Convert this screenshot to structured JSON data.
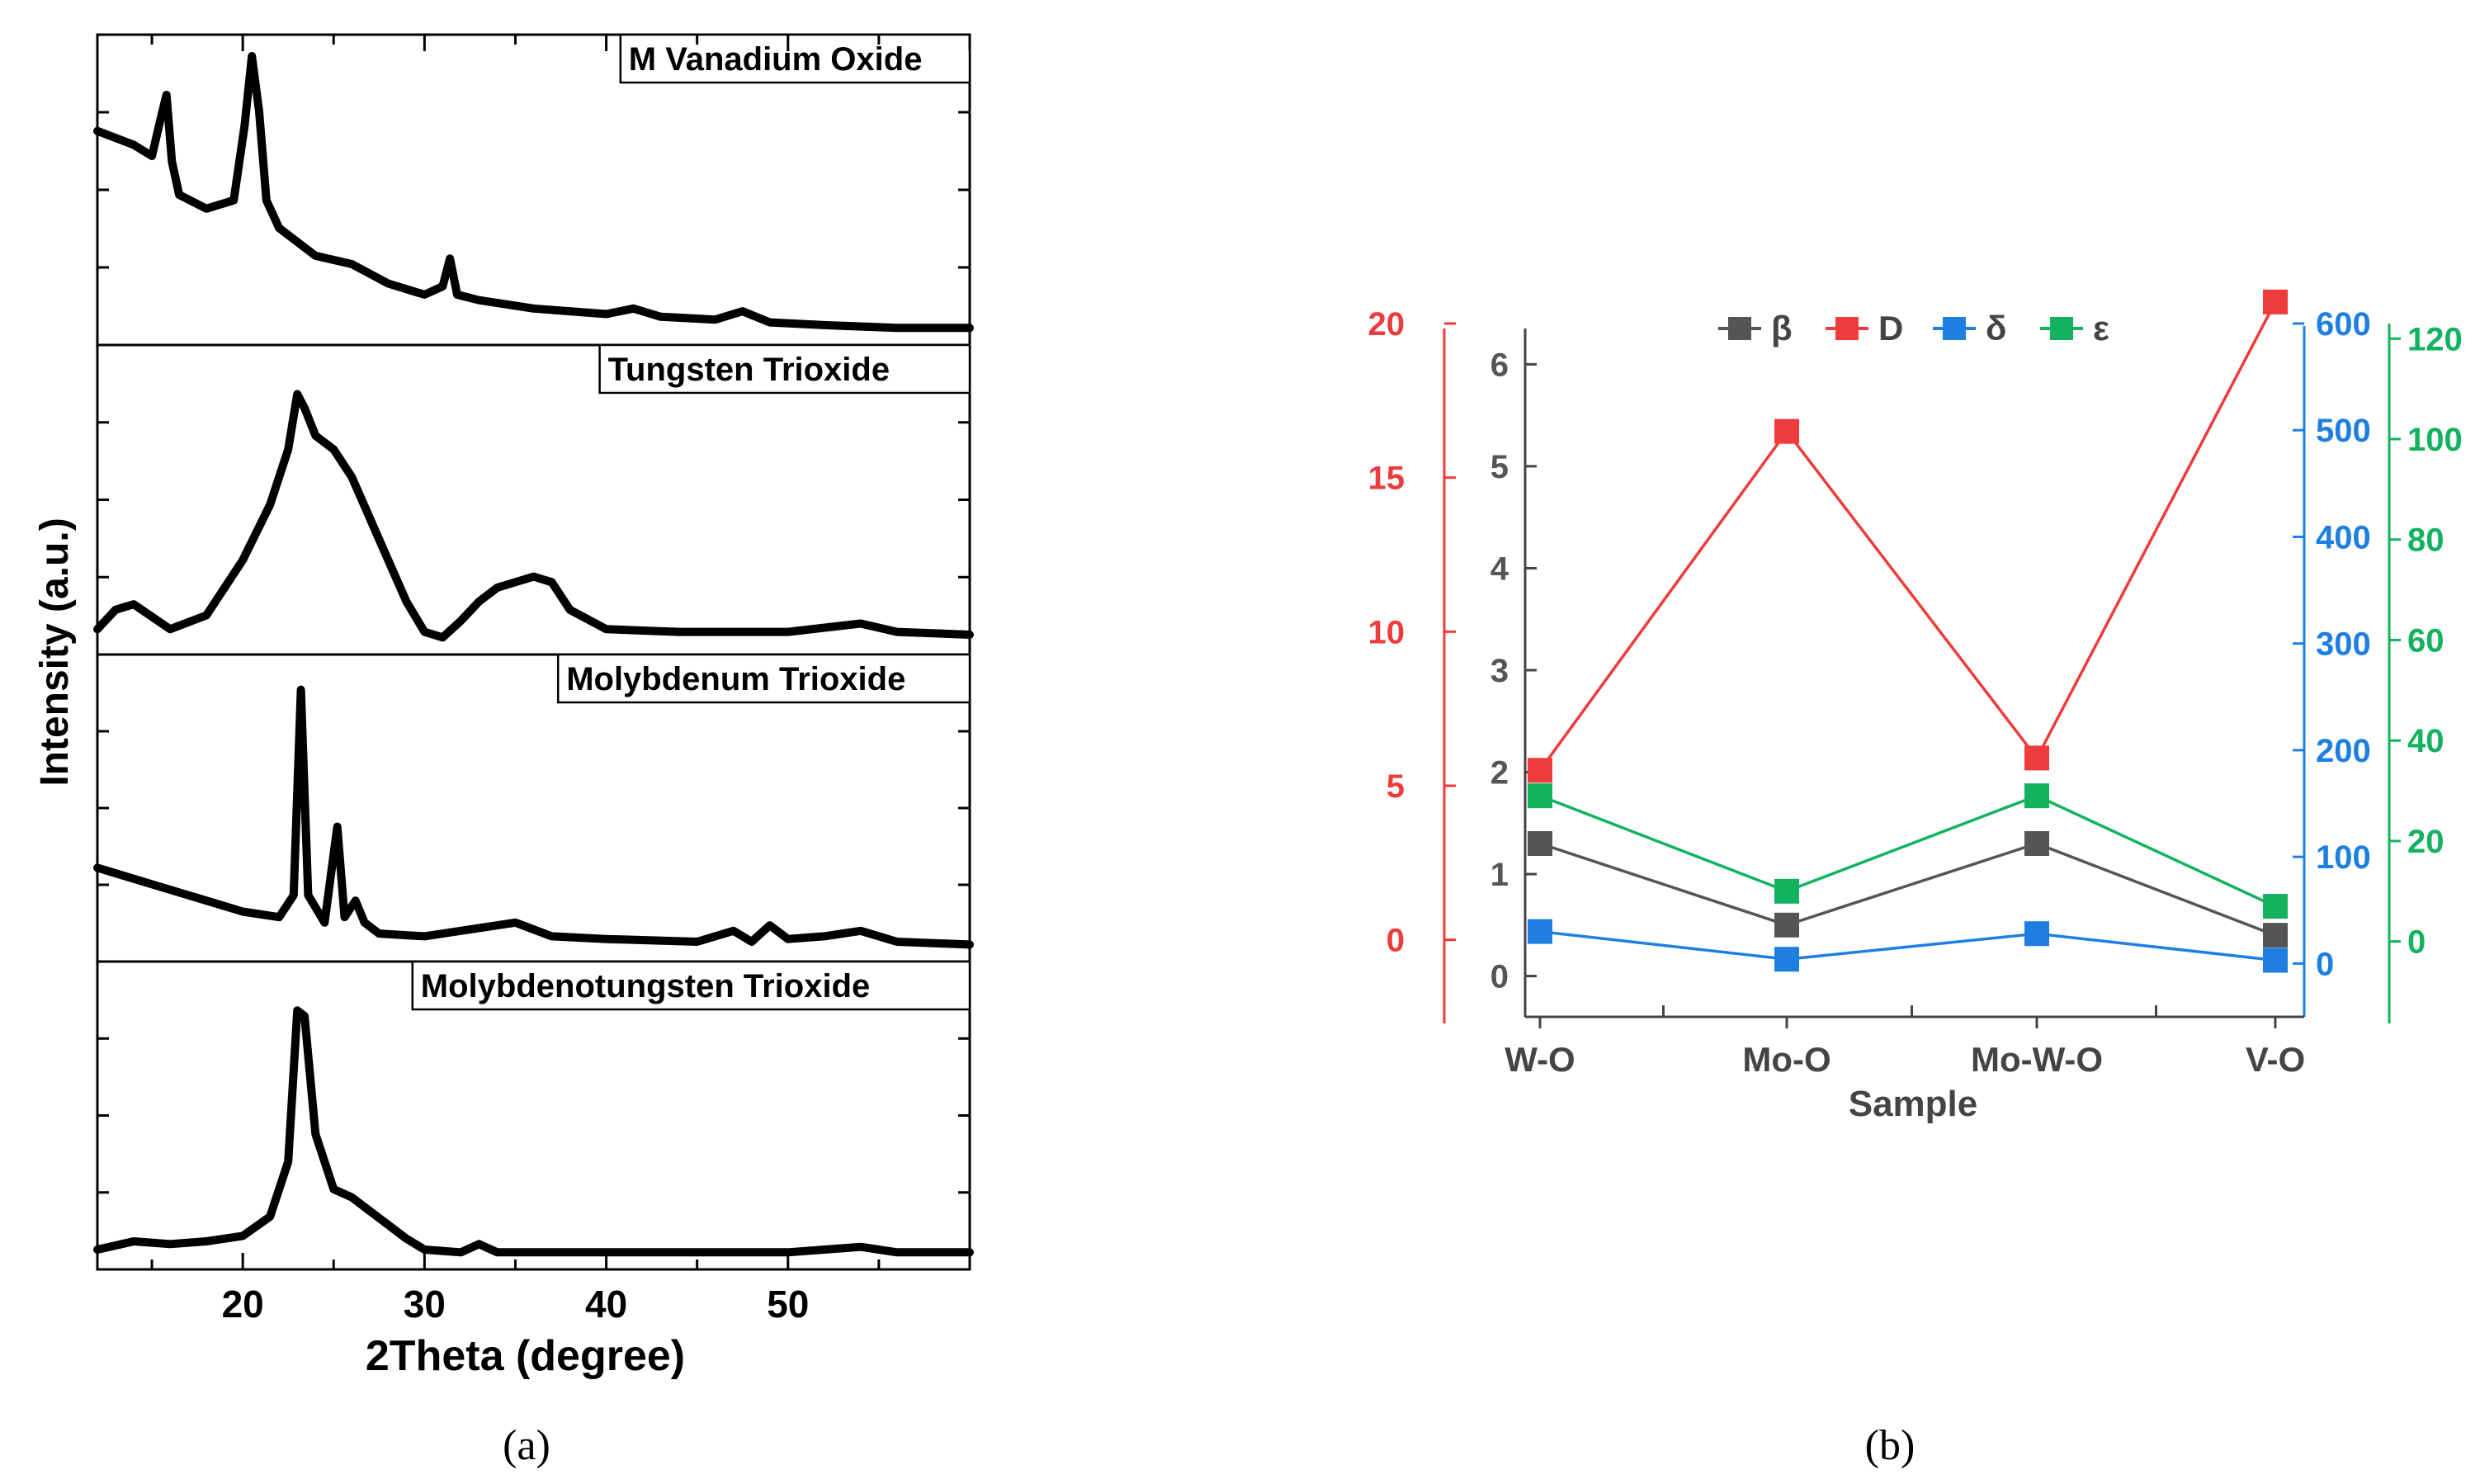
{
  "chart_data": [
    {
      "type": "line",
      "panel": "(a)",
      "xlabel": "2Theta (degree)",
      "ylabel": "Intensity (a.u.)",
      "xlim": [
        12,
        60
      ],
      "xticks": [
        20,
        30,
        40,
        50
      ],
      "series": [
        {
          "name": "M Vanadium Oxide",
          "x": [
            12,
            14,
            15,
            15.5,
            15.8,
            16.1,
            16.5,
            18,
            19.5,
            20.1,
            20.5,
            20.9,
            21.3,
            22,
            24,
            26,
            28,
            30,
            31,
            31.4,
            31.8,
            33,
            36,
            40,
            41.5,
            43,
            46,
            47.5,
            49,
            52,
            56,
            60
          ],
          "y": [
            0.73,
            0.68,
            0.64,
            0.78,
            0.86,
            0.62,
            0.5,
            0.45,
            0.48,
            0.75,
            1.0,
            0.8,
            0.48,
            0.38,
            0.28,
            0.25,
            0.18,
            0.14,
            0.17,
            0.27,
            0.14,
            0.12,
            0.09,
            0.07,
            0.09,
            0.06,
            0.05,
            0.08,
            0.04,
            0.03,
            0.02,
            0.02
          ]
        },
        {
          "name": "Tungsten Trioxide",
          "x": [
            12,
            13,
            14,
            16,
            18,
            20,
            21.5,
            22.5,
            23,
            23.4,
            24,
            25,
            26,
            27,
            28,
            29,
            30,
            31,
            32,
            33,
            34,
            36,
            37,
            38,
            40,
            44,
            50,
            54,
            56,
            60
          ],
          "y": [
            0.05,
            0.12,
            0.14,
            0.05,
            0.1,
            0.3,
            0.5,
            0.7,
            0.9,
            0.85,
            0.75,
            0.7,
            0.6,
            0.45,
            0.3,
            0.15,
            0.04,
            0.02,
            0.08,
            0.15,
            0.2,
            0.24,
            0.22,
            0.12,
            0.05,
            0.04,
            0.04,
            0.07,
            0.04,
            0.03
          ]
        },
        {
          "name": "Molybdenum Trioxide",
          "x": [
            12,
            16,
            18,
            20,
            22,
            22.8,
            23.2,
            23.6,
            24.5,
            25.2,
            25.6,
            26.2,
            26.7,
            27.5,
            30,
            33,
            35,
            37,
            40,
            45,
            47,
            48,
            49,
            50,
            52,
            54,
            56,
            60
          ],
          "y": [
            0.3,
            0.22,
            0.18,
            0.14,
            0.12,
            0.2,
            0.95,
            0.2,
            0.1,
            0.45,
            0.12,
            0.18,
            0.1,
            0.06,
            0.05,
            0.08,
            0.1,
            0.05,
            0.04,
            0.03,
            0.07,
            0.03,
            0.09,
            0.04,
            0.05,
            0.07,
            0.03,
            0.02
          ]
        },
        {
          "name": "Molybdenotungsten Trioxide",
          "x": [
            12,
            14,
            16,
            18,
            20,
            21.5,
            22.5,
            23,
            23.4,
            24,
            25,
            26,
            27,
            28,
            29,
            30,
            32,
            33,
            34,
            40,
            50,
            54,
            56,
            60
          ],
          "y": [
            0.03,
            0.06,
            0.05,
            0.06,
            0.08,
            0.15,
            0.35,
            0.9,
            0.88,
            0.45,
            0.25,
            0.22,
            0.17,
            0.12,
            0.07,
            0.03,
            0.02,
            0.05,
            0.02,
            0.02,
            0.02,
            0.04,
            0.02,
            0.02
          ]
        }
      ]
    },
    {
      "type": "line",
      "panel": "(b)",
      "xlabel": "Sample",
      "categories": [
        "W-O",
        "Mo-O",
        "Mo-W-O",
        "V-O"
      ],
      "legend": [
        "β",
        "D",
        "δ",
        "ε"
      ],
      "legend_position": "top-center",
      "axes": {
        "beta": {
          "ylim": [
            -0.4,
            6.4
          ],
          "ticks": [
            0,
            1,
            2,
            3,
            4,
            5,
            6
          ],
          "color": "#555555"
        },
        "D": {
          "ylim": [
            -2.5,
            20.0
          ],
          "ticks": [
            0,
            5,
            10,
            15,
            20
          ],
          "color": "#ee3b3b"
        },
        "delta": {
          "ylim": [
            -50,
            600
          ],
          "ticks": [
            0,
            100,
            200,
            300,
            400,
            500,
            600
          ],
          "color": "#1f7fe0"
        },
        "epsilon": {
          "ylim": [
            -15,
            123
          ],
          "ticks": [
            0,
            20,
            40,
            60,
            80,
            100,
            120
          ],
          "color": "#13b25f"
        }
      },
      "series": [
        {
          "name": "β",
          "axis": "beta",
          "color": "#555555",
          "values": [
            1.3,
            0.5,
            1.3,
            0.4
          ]
        },
        {
          "name": "D",
          "axis": "D",
          "color": "#ee3b3b",
          "values": [
            5.5,
            16.5,
            5.9,
            20.7
          ]
        },
        {
          "name": "δ",
          "axis": "delta",
          "color": "#1f7fe0",
          "values": [
            30,
            4,
            28,
            3
          ]
        },
        {
          "name": "ε",
          "axis": "epsilon",
          "color": "#13b25f",
          "values": [
            29,
            10,
            29,
            7
          ]
        }
      ]
    }
  ],
  "captions": {
    "a": "(a)",
    "b": "(b)"
  }
}
